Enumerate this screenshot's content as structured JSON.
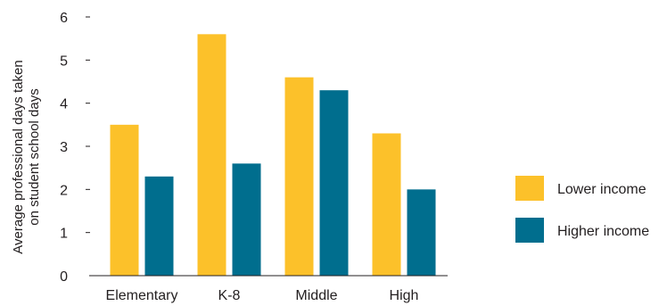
{
  "chart_data": {
    "type": "bar",
    "title": "",
    "xlabel": "",
    "ylabel_lines": [
      "Average professional days taken",
      "on student school days"
    ],
    "categories": [
      "Elementary",
      "K-8",
      "Middle",
      "High"
    ],
    "series": [
      {
        "name": "Lower income",
        "color": "#fcc12a",
        "values": [
          3.5,
          5.6,
          4.6,
          3.3
        ]
      },
      {
        "name": "Higher income",
        "color": "#006e8e",
        "values": [
          2.3,
          2.6,
          4.3,
          2.0
        ]
      }
    ],
    "y_ticks": [
      "0",
      "1",
      "2",
      "3",
      "4",
      "5",
      "6"
    ],
    "ylim": [
      0,
      6
    ],
    "grid": false,
    "legend_position": "right"
  }
}
